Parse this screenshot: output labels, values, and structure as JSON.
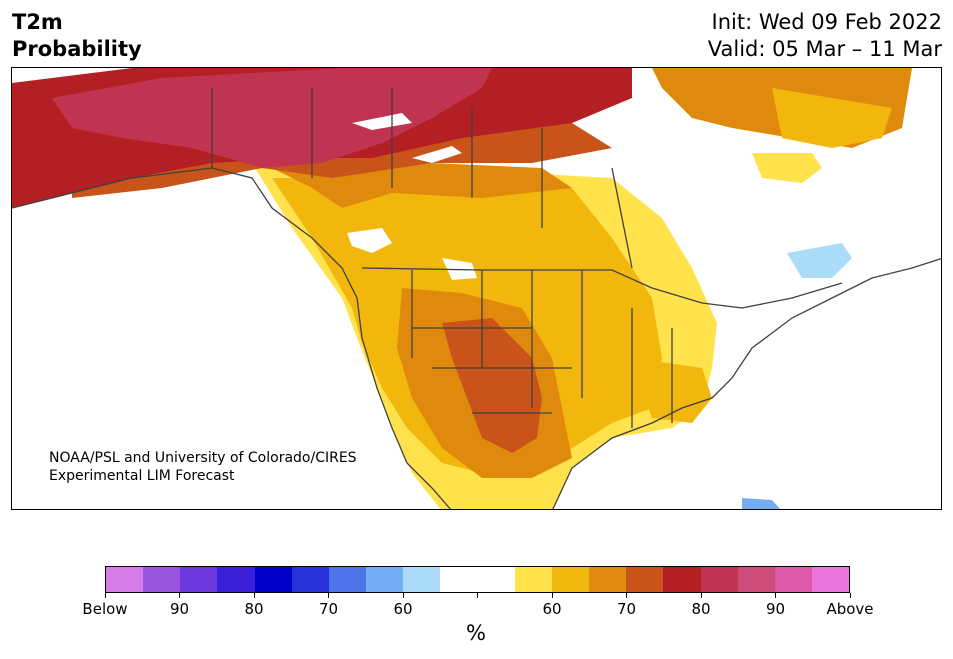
{
  "header": {
    "title_line1": "T2m",
    "title_line2": "Probability",
    "init_text": "Init: Wed 09 Feb 2022",
    "valid_text": "Valid: 05 Mar – 11 Mar"
  },
  "credit": {
    "line1": "NOAA/PSL and University of Colorado/CIRES",
    "line2": "Experimental LIM Forecast"
  },
  "colorbar": {
    "colors": [
      "#d67be8",
      "#9a55e0",
      "#6a38dc",
      "#3a1fd8",
      "#0000cd",
      "#2633db",
      "#4f73e8",
      "#74aef2",
      "#aadcf9",
      "#ffffff",
      "#ffffff",
      "#ffe24c",
      "#f2b70c",
      "#e08a0d",
      "#c8541a",
      "#b31f22",
      "#c13451",
      "#ce4c79",
      "#dc5aa8",
      "#e874dc"
    ],
    "tick_labels": [
      "Below",
      "90",
      "80",
      "70",
      "60",
      "",
      "60",
      "70",
      "80",
      "90",
      "Above"
    ],
    "units": "%"
  },
  "map_colors": {
    "above_50": "#ffe24c",
    "above_60": "#f2b70c",
    "above_70": "#e08a0d",
    "above_75": "#c8541a",
    "above_80": "#b31f22",
    "above_90": "#c13451",
    "below_60": "#aadcf9",
    "neutral": "#ffffff",
    "border": "#404040"
  }
}
